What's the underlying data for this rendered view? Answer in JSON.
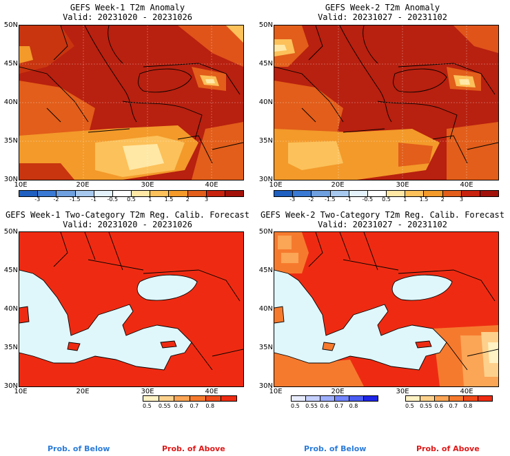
{
  "panels": {
    "p1": {
      "title": "GEFS Week-1 T2m Anomaly",
      "valid": "Valid: 20231020 - 20231026"
    },
    "p2": {
      "title": "GEFS Week-2 T2m Anomaly",
      "valid": "Valid: 20231027 - 20231102"
    },
    "p3": {
      "title": "GEFS Week-1 Two-Category T2m Reg. Calib. Forecast",
      "valid": "Valid: 20231020 - 20231026"
    },
    "p4": {
      "title": "GEFS Week-2 Two-Category T2m Reg. Calib. Forecast",
      "valid": "Valid: 20231027 - 20231102"
    }
  },
  "axes": {
    "lat_labels": [
      "50N",
      "45N",
      "40N",
      "35N",
      "30N"
    ],
    "lon_labels": [
      "10E",
      "20E",
      "30E",
      "40E"
    ]
  },
  "anomaly_colorbar": {
    "labels": [
      "-3",
      "-2",
      "-1.5",
      "-1",
      "-0.5",
      "0.5",
      "1",
      "1.5",
      "2",
      "3"
    ],
    "colors": [
      "#1f5fc0",
      "#3a7ad4",
      "#6fa0e0",
      "#a7c9ef",
      "#e4f2fb",
      "#ffffff",
      "#ffe8a6",
      "#fcc15a",
      "#f39a2a",
      "#e25e1a",
      "#c8230f",
      "#a3120a"
    ]
  },
  "prob_colorbar": {
    "labels": [
      "0.5",
      "0.55",
      "0.6",
      "0.7",
      "0.8"
    ],
    "above_colors": [
      "#fff2c4",
      "#fdd18c",
      "#fba556",
      "#f67a2e",
      "#f04a1a",
      "#ee2b12"
    ],
    "below_colors": [
      "#e8ecff",
      "#c6d0ff",
      "#9eafff",
      "#7385ff",
      "#4a5cf2",
      "#1f25e6"
    ]
  },
  "legend": {
    "below": "Prob. of Below",
    "above": "Prob. of Above",
    "below_color": "#2b7bd9",
    "above_color": "#e01818"
  }
}
